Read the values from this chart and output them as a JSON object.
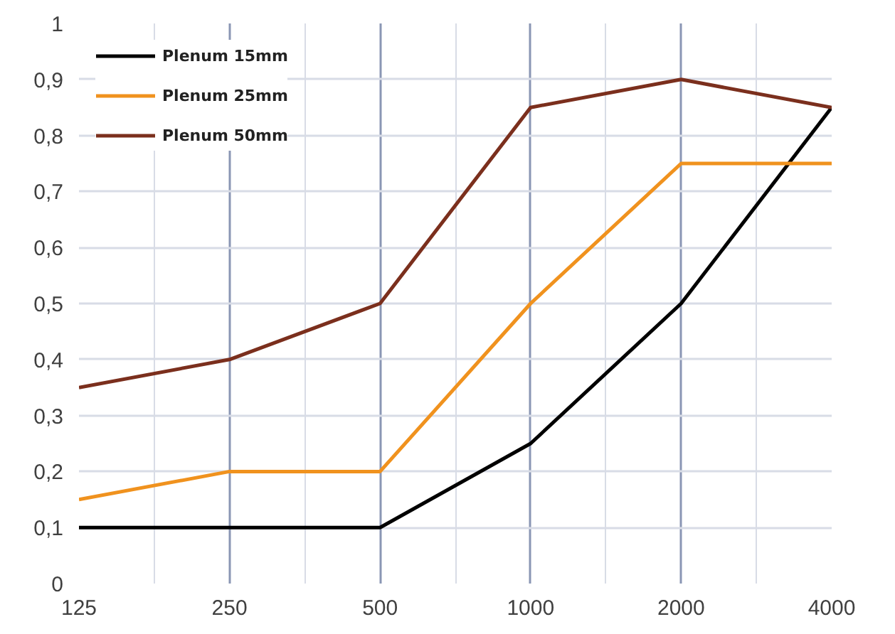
{
  "chart_data": {
    "type": "line",
    "categories": [
      "125",
      "250",
      "500",
      "1000",
      "2000",
      "4000"
    ],
    "series": [
      {
        "name": "Plenum 15mm",
        "color": "#000000",
        "values": [
          0.1,
          0.1,
          0.1,
          0.25,
          0.5,
          0.85
        ]
      },
      {
        "name": "Plenum 25mm",
        "color": "#f0921e",
        "values": [
          0.15,
          0.2,
          0.2,
          0.5,
          0.75,
          0.75
        ]
      },
      {
        "name": "Plenum 50mm",
        "color": "#7b2f1d",
        "values": [
          0.35,
          0.4,
          0.5,
          0.85,
          0.9,
          0.85
        ]
      }
    ],
    "ylim": [
      0,
      1
    ],
    "yticks": [
      0,
      {
        "value": 0.1,
        "label": "0,1"
      },
      {
        "value": 0.2,
        "label": "0,2"
      },
      {
        "value": 0.3,
        "label": "0,3"
      },
      {
        "value": 0.4,
        "label": "0,4"
      },
      {
        "value": 0.5,
        "label": "0,5"
      },
      {
        "value": 0.6,
        "label": "0,6"
      },
      {
        "value": 0.7,
        "label": "0,7"
      },
      {
        "value": 0.8,
        "label": "0,8"
      },
      {
        "value": 0.9,
        "label": "0,9"
      },
      1
    ],
    "grid": true,
    "legend": "top left",
    "line_style": "solid"
  }
}
